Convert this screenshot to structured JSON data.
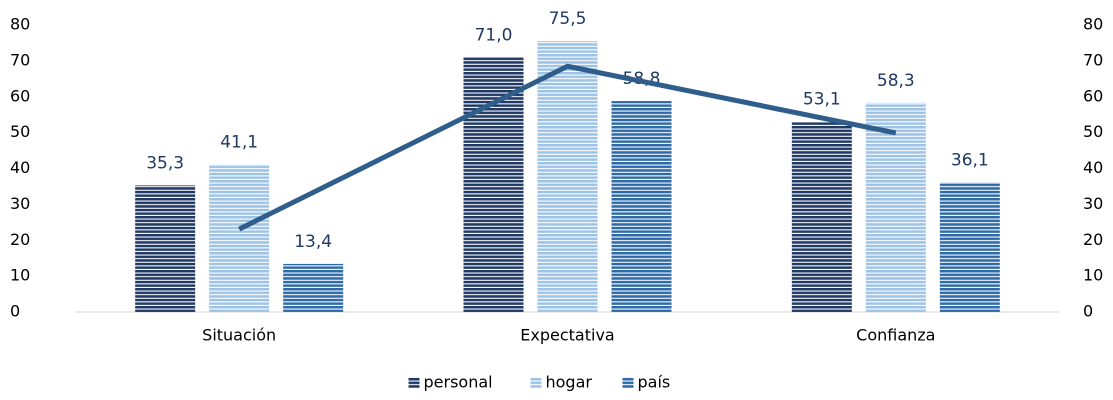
{
  "chart_data": {
    "type": "bar",
    "categories": [
      "Situación",
      "Expectativa",
      "Confianza"
    ],
    "series": [
      {
        "name": "personal",
        "color": "#1f3864",
        "values": [
          35.3,
          71.0,
          53.1
        ],
        "value_labels": [
          "35,3",
          "71,0",
          "53,1"
        ]
      },
      {
        "name": "hogar",
        "color": "#9dc3e6",
        "values": [
          41.1,
          75.5,
          58.3
        ],
        "value_labels": [
          "41,1",
          "75,5",
          "58,3"
        ]
      },
      {
        "name": "país",
        "color": "#2e6aa8",
        "values": [
          13.4,
          58.8,
          36.1
        ],
        "value_labels": [
          "13,4",
          "58,8",
          "36,1"
        ]
      },
      {
        "type": "line",
        "axis": "y2",
        "color": "#2f5d8c",
        "values": [
          23.1,
          68.5,
          49.9
        ]
      }
    ],
    "ylim": [
      0,
      80
    ],
    "yticks": [
      0,
      10,
      20,
      30,
      40,
      50,
      60,
      70,
      80
    ],
    "y2lim": [
      0,
      80
    ],
    "y2ticks": [
      0,
      10,
      20,
      30,
      40,
      50,
      60,
      70,
      80
    ],
    "legend": "bottom"
  }
}
